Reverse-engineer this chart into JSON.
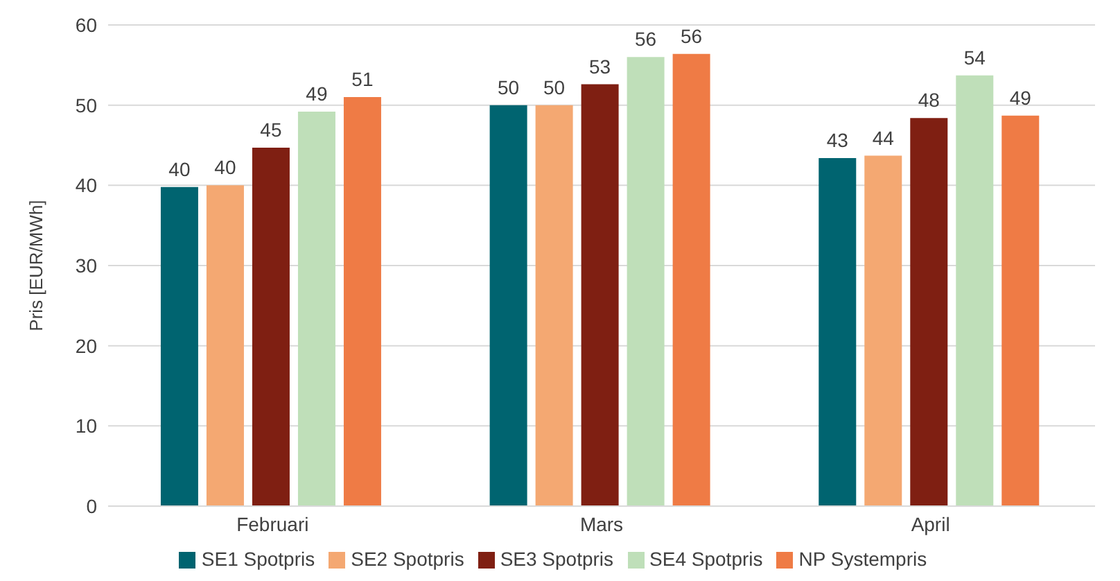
{
  "chart_data": {
    "type": "bar",
    "ylabel": "Pris [EUR/MWh]",
    "categories": [
      "Februari",
      "Mars",
      "April"
    ],
    "series": [
      {
        "name": "SE1 Spotpris",
        "color": "#006470",
        "values": [
          39.8,
          50.0,
          43.4
        ],
        "value_labels": [
          "40",
          "50",
          "43"
        ]
      },
      {
        "name": "SE2 Spotpris",
        "color": "#f4a872",
        "values": [
          40.0,
          50.0,
          43.7
        ],
        "value_labels": [
          "40",
          "50",
          "44"
        ]
      },
      {
        "name": "SE3 Spotpris",
        "color": "#7f1f12",
        "values": [
          44.7,
          52.6,
          48.4
        ],
        "value_labels": [
          "45",
          "53",
          "48"
        ]
      },
      {
        "name": "SE4 Spotpris",
        "color": "#bfdfb9",
        "values": [
          49.2,
          56.0,
          53.7
        ],
        "value_labels": [
          "49",
          "56",
          "54"
        ]
      },
      {
        "name": "NP Systempris",
        "color": "#ef7b45",
        "values": [
          51.0,
          56.4,
          48.7
        ],
        "value_labels": [
          "51",
          "56",
          "49"
        ]
      }
    ],
    "ylim": [
      0,
      60
    ],
    "yticks": [
      0,
      10,
      20,
      30,
      40,
      50,
      60
    ],
    "grid": "y",
    "legend": "bottom"
  }
}
